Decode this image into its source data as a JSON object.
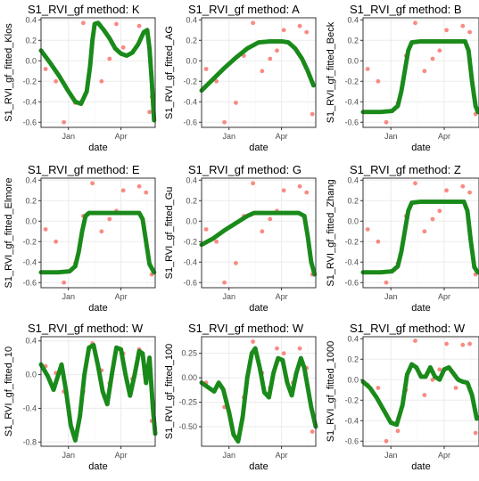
{
  "palette": {
    "observed": "#f8766d",
    "fitted": "#1a8a1a",
    "panel_border": "#333333",
    "grid": "#ebebeb"
  },
  "chart_data": [
    {
      "type": "scatter",
      "title": "S1_RVI_gf method: K",
      "xlabel": "date",
      "ylabel": "S1_RVI_gf_fitted_Klos",
      "x_ticks": [
        "Jan",
        "Apr"
      ],
      "y_ticks": [
        "0.4",
        "0.2",
        "0.0",
        "-0.2",
        "-0.4",
        "-0.6"
      ],
      "ylim": [
        -0.65,
        0.42
      ],
      "observed": [
        [
          0.04,
          -0.08
        ],
        [
          0.13,
          -0.2
        ],
        [
          0.2,
          -0.6
        ],
        [
          0.3,
          -0.41
        ],
        [
          0.37,
          0.37
        ],
        [
          0.45,
          0.2
        ],
        [
          0.53,
          -0.2
        ],
        [
          0.6,
          0.02
        ],
        [
          0.66,
          0.36
        ],
        [
          0.72,
          0.13
        ],
        [
          0.86,
          0.34
        ],
        [
          0.92,
          0.28
        ],
        [
          0.95,
          -0.5
        ],
        [
          0.97,
          -0.35
        ]
      ],
      "fitted": [
        [
          0.0,
          0.1
        ],
        [
          0.08,
          -0.02
        ],
        [
          0.16,
          -0.15
        ],
        [
          0.23,
          -0.28
        ],
        [
          0.3,
          -0.4
        ],
        [
          0.35,
          -0.42
        ],
        [
          0.4,
          -0.3
        ],
        [
          0.43,
          -0.05
        ],
        [
          0.45,
          0.2
        ],
        [
          0.47,
          0.36
        ],
        [
          0.5,
          0.37
        ],
        [
          0.55,
          0.3
        ],
        [
          0.6,
          0.22
        ],
        [
          0.65,
          0.12
        ],
        [
          0.7,
          0.07
        ],
        [
          0.75,
          0.05
        ],
        [
          0.8,
          0.08
        ],
        [
          0.85,
          0.16
        ],
        [
          0.9,
          0.28
        ],
        [
          0.93,
          0.3
        ],
        [
          0.95,
          0.12
        ],
        [
          0.97,
          -0.2
        ],
        [
          0.99,
          -0.58
        ]
      ]
    },
    {
      "type": "scatter",
      "title": "S1_RVI_gf method: A",
      "xlabel": "date",
      "ylabel": "S1_RVI_gf_fitted_AG",
      "x_ticks": [
        "Jan",
        "Apr"
      ],
      "y_ticks": [
        "0.4",
        "0.2",
        "0.0",
        "-0.2",
        "-0.4",
        "-0.6"
      ],
      "ylim": [
        -0.65,
        0.42
      ],
      "observed": [
        [
          0.04,
          -0.08
        ],
        [
          0.13,
          -0.2
        ],
        [
          0.2,
          -0.6
        ],
        [
          0.3,
          -0.41
        ],
        [
          0.37,
          0.05
        ],
        [
          0.45,
          0.37
        ],
        [
          0.53,
          -0.1
        ],
        [
          0.6,
          0.02
        ],
        [
          0.66,
          0.1
        ],
        [
          0.72,
          0.3
        ],
        [
          0.86,
          0.34
        ],
        [
          0.92,
          0.28
        ],
        [
          0.97,
          -0.52
        ]
      ],
      "fitted": [
        [
          0.0,
          -0.29
        ],
        [
          0.1,
          -0.18
        ],
        [
          0.2,
          -0.07
        ],
        [
          0.3,
          0.03
        ],
        [
          0.4,
          0.12
        ],
        [
          0.5,
          0.18
        ],
        [
          0.6,
          0.19
        ],
        [
          0.7,
          0.19
        ],
        [
          0.76,
          0.18
        ],
        [
          0.82,
          0.12
        ],
        [
          0.88,
          0.02
        ],
        [
          0.93,
          -0.1
        ],
        [
          0.98,
          -0.24
        ]
      ]
    },
    {
      "type": "scatter",
      "title": "S1_RVI_gf method: B",
      "xlabel": "date",
      "ylabel": "S1_RVI_gf_fitted_Beck",
      "x_ticks": [
        "Jan",
        "Apr"
      ],
      "y_ticks": [
        "0.4",
        "0.2",
        "0.0",
        "-0.2",
        "-0.4",
        "-0.6"
      ],
      "ylim": [
        -0.65,
        0.42
      ],
      "observed": [
        [
          0.04,
          -0.08
        ],
        [
          0.13,
          -0.2
        ],
        [
          0.2,
          -0.6
        ],
        [
          0.3,
          -0.41
        ],
        [
          0.37,
          0.05
        ],
        [
          0.45,
          0.37
        ],
        [
          0.53,
          -0.1
        ],
        [
          0.6,
          0.02
        ],
        [
          0.66,
          0.1
        ],
        [
          0.72,
          0.3
        ],
        [
          0.86,
          0.34
        ],
        [
          0.92,
          0.28
        ],
        [
          0.97,
          -0.52
        ]
      ],
      "fitted": [
        [
          0.0,
          -0.5
        ],
        [
          0.15,
          -0.5
        ],
        [
          0.25,
          -0.49
        ],
        [
          0.3,
          -0.44
        ],
        [
          0.33,
          -0.3
        ],
        [
          0.36,
          -0.1
        ],
        [
          0.39,
          0.1
        ],
        [
          0.42,
          0.18
        ],
        [
          0.5,
          0.19
        ],
        [
          0.7,
          0.19
        ],
        [
          0.88,
          0.19
        ],
        [
          0.91,
          0.1
        ],
        [
          0.94,
          -0.2
        ],
        [
          0.97,
          -0.44
        ],
        [
          0.99,
          -0.5
        ]
      ]
    },
    {
      "type": "scatter",
      "title": "S1_RVI_gf method: E",
      "xlabel": "date",
      "ylabel": "S1_RVI_gf_fitted_Elmore",
      "x_ticks": [
        "Jan",
        "Apr"
      ],
      "y_ticks": [
        "0.4",
        "0.2",
        "0.0",
        "-0.2",
        "-0.4",
        "-0.6"
      ],
      "ylim": [
        -0.65,
        0.42
      ],
      "observed": [
        [
          0.04,
          -0.08
        ],
        [
          0.13,
          -0.2
        ],
        [
          0.2,
          -0.6
        ],
        [
          0.3,
          -0.41
        ],
        [
          0.37,
          0.05
        ],
        [
          0.45,
          0.37
        ],
        [
          0.53,
          -0.1
        ],
        [
          0.6,
          0.02
        ],
        [
          0.66,
          0.1
        ],
        [
          0.72,
          0.3
        ],
        [
          0.86,
          0.34
        ],
        [
          0.92,
          0.28
        ],
        [
          0.97,
          -0.52
        ]
      ],
      "fitted": [
        [
          0.0,
          -0.5
        ],
        [
          0.15,
          -0.5
        ],
        [
          0.25,
          -0.49
        ],
        [
          0.3,
          -0.44
        ],
        [
          0.33,
          -0.3
        ],
        [
          0.36,
          -0.1
        ],
        [
          0.39,
          0.05
        ],
        [
          0.42,
          0.08
        ],
        [
          0.5,
          0.08
        ],
        [
          0.7,
          0.08
        ],
        [
          0.86,
          0.08
        ],
        [
          0.89,
          0.02
        ],
        [
          0.92,
          -0.2
        ],
        [
          0.95,
          -0.42
        ],
        [
          0.99,
          -0.5
        ]
      ]
    },
    {
      "type": "scatter",
      "title": "S1_RVI_gf method: G",
      "xlabel": "date",
      "ylabel": "S1_RVI_gf_fitted_Gu",
      "x_ticks": [
        "Jan",
        "Apr"
      ],
      "y_ticks": [
        "0.4",
        "0.2",
        "0.0",
        "-0.2",
        "-0.4",
        "-0.6"
      ],
      "ylim": [
        -0.65,
        0.42
      ],
      "observed": [
        [
          0.04,
          -0.08
        ],
        [
          0.13,
          -0.2
        ],
        [
          0.2,
          -0.6
        ],
        [
          0.3,
          -0.41
        ],
        [
          0.37,
          0.05
        ],
        [
          0.45,
          0.37
        ],
        [
          0.53,
          -0.1
        ],
        [
          0.6,
          0.02
        ],
        [
          0.66,
          0.1
        ],
        [
          0.72,
          0.3
        ],
        [
          0.86,
          0.34
        ],
        [
          0.92,
          0.28
        ],
        [
          0.97,
          -0.52
        ]
      ],
      "fitted": [
        [
          0.0,
          -0.23
        ],
        [
          0.1,
          -0.17
        ],
        [
          0.2,
          -0.09
        ],
        [
          0.3,
          -0.02
        ],
        [
          0.4,
          0.05
        ],
        [
          0.46,
          0.08
        ],
        [
          0.55,
          0.08
        ],
        [
          0.7,
          0.08
        ],
        [
          0.85,
          0.08
        ],
        [
          0.9,
          0.05
        ],
        [
          0.93,
          -0.15
        ],
        [
          0.96,
          -0.4
        ],
        [
          0.99,
          -0.52
        ]
      ]
    },
    {
      "type": "scatter",
      "title": "S1_RVI_gf method: Z",
      "xlabel": "date",
      "ylabel": "S1_RVI_gf_fitted_Zhang",
      "x_ticks": [
        "Jan",
        "Apr"
      ],
      "y_ticks": [
        "0.4",
        "0.2",
        "0.0",
        "-0.2",
        "-0.4",
        "-0.6"
      ],
      "ylim": [
        -0.65,
        0.42
      ],
      "observed": [
        [
          0.04,
          -0.08
        ],
        [
          0.13,
          -0.2
        ],
        [
          0.2,
          -0.6
        ],
        [
          0.3,
          -0.41
        ],
        [
          0.37,
          0.05
        ],
        [
          0.45,
          0.37
        ],
        [
          0.53,
          -0.1
        ],
        [
          0.6,
          0.02
        ],
        [
          0.66,
          0.1
        ],
        [
          0.72,
          0.3
        ],
        [
          0.86,
          0.34
        ],
        [
          0.92,
          0.28
        ],
        [
          0.97,
          -0.52
        ]
      ],
      "fitted": [
        [
          0.0,
          -0.5
        ],
        [
          0.15,
          -0.5
        ],
        [
          0.25,
          -0.49
        ],
        [
          0.3,
          -0.44
        ],
        [
          0.33,
          -0.3
        ],
        [
          0.36,
          -0.1
        ],
        [
          0.39,
          0.1
        ],
        [
          0.42,
          0.18
        ],
        [
          0.5,
          0.19
        ],
        [
          0.7,
          0.19
        ],
        [
          0.87,
          0.19
        ],
        [
          0.9,
          0.1
        ],
        [
          0.93,
          -0.2
        ],
        [
          0.96,
          -0.45
        ],
        [
          0.99,
          -0.5
        ]
      ]
    },
    {
      "type": "scatter",
      "title": "S1_RVI_gf method: W",
      "xlabel": "date",
      "ylabel": "S1_RVI_gf_fitted_10",
      "x_ticks": [
        "Jan",
        "Apr"
      ],
      "y_ticks": [
        "0.4",
        "0.0",
        "-0.4",
        "-0.8"
      ],
      "ylim": [
        -0.85,
        0.45
      ],
      "observed": [
        [
          0.04,
          0.1
        ],
        [
          0.13,
          0.02
        ],
        [
          0.2,
          -0.2
        ],
        [
          0.3,
          -0.75
        ],
        [
          0.37,
          -0.2
        ],
        [
          0.45,
          0.37
        ],
        [
          0.53,
          0.05
        ],
        [
          0.6,
          -0.1
        ],
        [
          0.66,
          0.3
        ],
        [
          0.72,
          0.25
        ],
        [
          0.8,
          -0.05
        ],
        [
          0.86,
          0.3
        ],
        [
          0.92,
          0.1
        ],
        [
          0.97,
          -0.55
        ]
      ],
      "fitted": [
        [
          0.0,
          0.12
        ],
        [
          0.06,
          -0.02
        ],
        [
          0.11,
          -0.18
        ],
        [
          0.14,
          -0.05
        ],
        [
          0.18,
          0.12
        ],
        [
          0.22,
          -0.2
        ],
        [
          0.26,
          -0.6
        ],
        [
          0.3,
          -0.78
        ],
        [
          0.34,
          -0.5
        ],
        [
          0.38,
          0.0
        ],
        [
          0.42,
          0.32
        ],
        [
          0.46,
          0.35
        ],
        [
          0.5,
          0.1
        ],
        [
          0.54,
          -0.2
        ],
        [
          0.58,
          -0.35
        ],
        [
          0.62,
          0.0
        ],
        [
          0.66,
          0.32
        ],
        [
          0.7,
          0.3
        ],
        [
          0.74,
          0.0
        ],
        [
          0.78,
          -0.25
        ],
        [
          0.82,
          0.0
        ],
        [
          0.86,
          0.28
        ],
        [
          0.89,
          0.25
        ],
        [
          0.92,
          -0.1
        ],
        [
          0.95,
          0.2
        ],
        [
          0.98,
          -0.4
        ],
        [
          1.0,
          -0.7
        ]
      ]
    },
    {
      "type": "scatter",
      "title": "S1_RVI_gf method: W",
      "xlabel": "date",
      "ylabel": "S1_RVI_gf_fitted_100",
      "x_ticks": [
        "Jan",
        "Apr"
      ],
      "y_ticks": [
        "0.25",
        "0.00",
        "-0.25",
        "-0.50"
      ],
      "ylim": [
        -0.7,
        0.42
      ],
      "observed": [
        [
          0.04,
          -0.05
        ],
        [
          0.13,
          -0.1
        ],
        [
          0.2,
          -0.3
        ],
        [
          0.3,
          -0.62
        ],
        [
          0.37,
          -0.2
        ],
        [
          0.45,
          0.37
        ],
        [
          0.53,
          0.05
        ],
        [
          0.6,
          -0.1
        ],
        [
          0.66,
          0.3
        ],
        [
          0.72,
          0.25
        ],
        [
          0.8,
          -0.05
        ],
        [
          0.86,
          0.3
        ],
        [
          0.92,
          0.1
        ],
        [
          0.97,
          -0.55
        ]
      ],
      "fitted": [
        [
          0.0,
          -0.05
        ],
        [
          0.06,
          -0.1
        ],
        [
          0.11,
          -0.14
        ],
        [
          0.15,
          -0.05
        ],
        [
          0.19,
          -0.12
        ],
        [
          0.24,
          -0.35
        ],
        [
          0.28,
          -0.58
        ],
        [
          0.32,
          -0.65
        ],
        [
          0.36,
          -0.4
        ],
        [
          0.4,
          0.0
        ],
        [
          0.44,
          0.25
        ],
        [
          0.47,
          0.3
        ],
        [
          0.51,
          0.1
        ],
        [
          0.55,
          -0.15
        ],
        [
          0.59,
          -0.2
        ],
        [
          0.63,
          0.05
        ],
        [
          0.67,
          0.2
        ],
        [
          0.71,
          0.18
        ],
        [
          0.75,
          -0.05
        ],
        [
          0.79,
          -0.18
        ],
        [
          0.83,
          0.05
        ],
        [
          0.87,
          0.2
        ],
        [
          0.9,
          0.1
        ],
        [
          0.93,
          -0.1
        ],
        [
          0.96,
          -0.3
        ],
        [
          1.0,
          -0.5
        ]
      ]
    },
    {
      "type": "scatter",
      "title": "S1_RVI_gf method: W",
      "xlabel": "date",
      "ylabel": "S1_RVI_gf_fitted_1000",
      "x_ticks": [
        "Jan",
        "Apr"
      ],
      "y_ticks": [
        "0.4",
        "0.2",
        "0.0",
        "-0.2",
        "-0.4",
        "-0.6"
      ],
      "ylim": [
        -0.65,
        0.42
      ],
      "observed": [
        [
          0.04,
          -0.05
        ],
        [
          0.13,
          -0.08
        ],
        [
          0.2,
          -0.6
        ],
        [
          0.3,
          -0.5
        ],
        [
          0.37,
          -0.1
        ],
        [
          0.45,
          0.38
        ],
        [
          0.53,
          -0.15
        ],
        [
          0.6,
          0.0
        ],
        [
          0.66,
          0.1
        ],
        [
          0.72,
          0.35
        ],
        [
          0.8,
          -0.08
        ],
        [
          0.86,
          0.34
        ],
        [
          0.92,
          0.35
        ],
        [
          0.97,
          -0.52
        ]
      ],
      "fitted": [
        [
          0.0,
          -0.02
        ],
        [
          0.06,
          -0.08
        ],
        [
          0.12,
          -0.18
        ],
        [
          0.18,
          -0.3
        ],
        [
          0.24,
          -0.42
        ],
        [
          0.29,
          -0.44
        ],
        [
          0.34,
          -0.25
        ],
        [
          0.38,
          0.05
        ],
        [
          0.42,
          0.15
        ],
        [
          0.46,
          0.12
        ],
        [
          0.5,
          0.03
        ],
        [
          0.54,
          0.03
        ],
        [
          0.58,
          0.12
        ],
        [
          0.62,
          0.03
        ],
        [
          0.66,
          0.0
        ],
        [
          0.7,
          0.1
        ],
        [
          0.74,
          0.12
        ],
        [
          0.78,
          0.06
        ],
        [
          0.82,
          0.0
        ],
        [
          0.86,
          -0.02
        ],
        [
          0.9,
          -0.03
        ],
        [
          0.94,
          -0.15
        ],
        [
          0.98,
          -0.38
        ]
      ]
    }
  ]
}
